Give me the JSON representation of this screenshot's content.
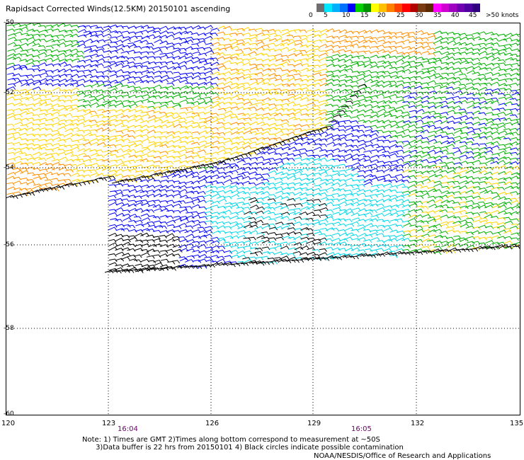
{
  "title": "Rapidsact Corrected Winds(12.5KM) 20150101 ascending",
  "legend": {
    "colors": [
      "#ffffff",
      "#7a7a7a",
      "#000000",
      "#00e0ff",
      "#00a0ff",
      "#0000ff",
      "#00c000",
      "#008000",
      "#ffff00",
      "#ffb000",
      "#ff7000",
      "#ff0000",
      "#c00000",
      "#8a3b00",
      "#5a2a00",
      "#ff00ff",
      "#c000c0",
      "#8000c0",
      "#5a008a",
      "#40007a",
      "#7000a0",
      "#9000c0",
      "#b000e0",
      "#6000a0",
      "#300060",
      "#ffffff"
    ],
    "labels": [
      "0",
      "5",
      "10",
      "15",
      "20",
      "25",
      "30",
      "35",
      "40",
      "45",
      ">50 knots"
    ]
  },
  "axes": {
    "lat_labels": [
      "-50",
      "-52",
      "-54",
      "-56",
      "-58",
      "-60"
    ],
    "lon_labels": [
      "120",
      "123",
      "126",
      "129",
      "132",
      "135"
    ],
    "time_labels": [
      "16:04",
      "16:05"
    ]
  },
  "wind_colors": {
    "black": "#000000",
    "cyan": "#00d8e8",
    "blue": "#0000ff",
    "green": "#00b000",
    "yellow": "#ffd400",
    "orange": "#ff9000",
    "red": "#e05000"
  },
  "notes": {
    "line1": "Note: 1) Times are GMT 2)Times along bottom correspond to measurement at ~50S",
    "line2": "      3)Data buffer is 22 hrs from 20150101 4) Black circles indicate possible contamination"
  },
  "credit": "NOAA/NESDIS/Office of Research and Applications"
}
